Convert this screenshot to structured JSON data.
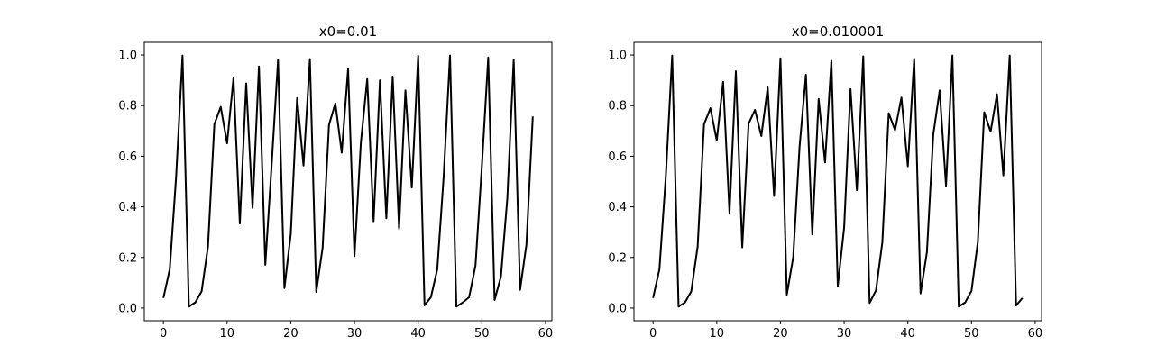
{
  "chart_data": [
    {
      "type": "line",
      "title": "x0=0.01",
      "xlabel": "",
      "ylabel": "",
      "xlim": [
        -3,
        61
      ],
      "ylim": [
        -0.05,
        1.05
      ],
      "xticks": [
        0,
        10,
        20,
        30,
        40,
        50,
        60
      ],
      "xtick_labels": [
        "0",
        "10",
        "20",
        "30",
        "40",
        "50",
        "60"
      ],
      "yticks": [
        0.0,
        0.2,
        0.4,
        0.6,
        0.8,
        1.0
      ],
      "ytick_labels": [
        "0.0",
        "0.2",
        "0.4",
        "0.6",
        "0.8",
        "1.0"
      ],
      "grid": false,
      "line_color": "#000000",
      "x": [
        0,
        1,
        2,
        3,
        4,
        5,
        6,
        7,
        8,
        9,
        10,
        11,
        12,
        13,
        14,
        15,
        16,
        17,
        18,
        19,
        20,
        21,
        22,
        23,
        24,
        25,
        26,
        27,
        28,
        29,
        30,
        31,
        32,
        33,
        34,
        35,
        36,
        37,
        38,
        39,
        40,
        41,
        42,
        43,
        44,
        45,
        46,
        47,
        48,
        49,
        50,
        51,
        52,
        53,
        54,
        55,
        56,
        57,
        58
      ],
      "values": [
        0.04,
        0.154,
        0.52,
        0.998,
        0.006,
        0.022,
        0.066,
        0.243,
        0.726,
        0.795,
        0.651,
        0.908,
        0.334,
        0.888,
        0.396,
        0.955,
        0.171,
        0.568,
        0.981,
        0.079,
        0.293,
        0.83,
        0.563,
        0.984,
        0.064,
        0.239,
        0.724,
        0.809,
        0.614,
        0.945,
        0.205,
        0.653,
        0.905,
        0.343,
        0.9,
        0.355,
        0.915,
        0.314,
        0.86,
        0.476,
        0.997,
        0.011,
        0.043,
        0.153,
        0.518,
        0.998,
        0.006,
        0.022,
        0.043,
        0.168,
        0.559,
        0.99,
        0.032,
        0.125,
        0.434,
        0.981,
        0.072,
        0.251,
        0.757
      ]
    },
    {
      "type": "line",
      "title": "x0=0.010001",
      "xlabel": "",
      "ylabel": "",
      "xlim": [
        -3,
        61
      ],
      "ylim": [
        -0.05,
        1.05
      ],
      "xticks": [
        0,
        10,
        20,
        30,
        40,
        50,
        60
      ],
      "xtick_labels": [
        "0",
        "10",
        "20",
        "30",
        "40",
        "50",
        "60"
      ],
      "yticks": [
        0.0,
        0.2,
        0.4,
        0.6,
        0.8,
        1.0
      ],
      "ytick_labels": [
        "0.0",
        "0.2",
        "0.4",
        "0.6",
        "0.8",
        "1.0"
      ],
      "grid": false,
      "line_color": "#000000",
      "x": [
        0,
        1,
        2,
        3,
        4,
        5,
        6,
        7,
        8,
        9,
        10,
        11,
        12,
        13,
        14,
        15,
        16,
        17,
        18,
        19,
        20,
        21,
        22,
        23,
        24,
        25,
        26,
        27,
        28,
        29,
        30,
        31,
        32,
        33,
        34,
        35,
        36,
        37,
        38,
        39,
        40,
        41,
        42,
        43,
        44,
        45,
        46,
        47,
        48,
        49,
        50,
        51,
        52,
        53,
        54,
        55,
        56,
        57,
        58
      ],
      "values": [
        0.04,
        0.154,
        0.52,
        0.998,
        0.006,
        0.022,
        0.066,
        0.243,
        0.726,
        0.79,
        0.662,
        0.894,
        0.376,
        0.936,
        0.24,
        0.729,
        0.783,
        0.68,
        0.872,
        0.443,
        0.987,
        0.053,
        0.2,
        0.637,
        0.922,
        0.291,
        0.826,
        0.575,
        0.977,
        0.087,
        0.318,
        0.866,
        0.466,
        0.995,
        0.02,
        0.07,
        0.26,
        0.77,
        0.703,
        0.832,
        0.56,
        0.985,
        0.058,
        0.221,
        0.686,
        0.86,
        0.483,
        0.998,
        0.006,
        0.022,
        0.068,
        0.262,
        0.774,
        0.697,
        0.845,
        0.524,
        0.998,
        0.01,
        0.04
      ]
    }
  ]
}
